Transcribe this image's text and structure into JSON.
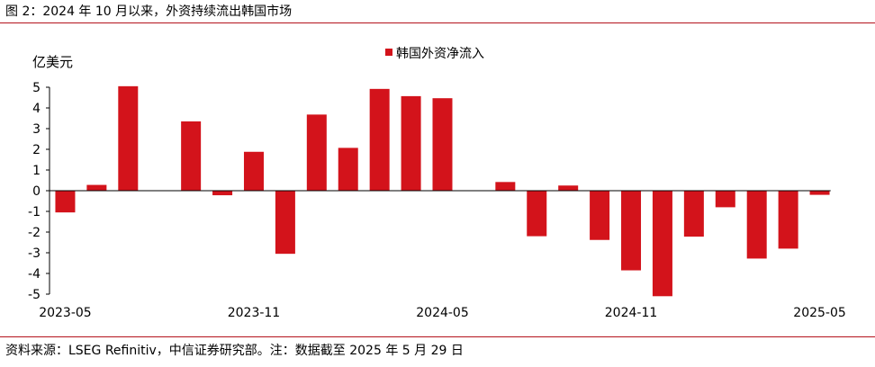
{
  "figure": {
    "title": "图 2：2024 年 10 月以来，外资持续流出韩国市场",
    "source": "资料来源：LSEG Refinitiv，中信证券研究部。注：数据截至 2025 年 5 月 29 日",
    "bar_color": "#d3131b",
    "rule_color": "#b4121b"
  },
  "chart_data": {
    "type": "bar",
    "title": "",
    "ylabel": "亿美元",
    "xlabel": "",
    "ylim": [
      -5,
      5
    ],
    "yticks": [
      5,
      4,
      3,
      2,
      1,
      0,
      -1,
      -2,
      -3,
      -4,
      -5
    ],
    "categories": [
      "2023-05",
      "2023-06",
      "2023-07",
      "2023-08",
      "2023-09",
      "2023-10",
      "2023-11",
      "2023-12",
      "2024-01",
      "2024-02",
      "2024-03",
      "2024-04",
      "2024-05",
      "2024-06",
      "2024-07",
      "2024-08",
      "2024-09",
      "2024-10",
      "2024-11",
      "2024-12",
      "2025-01",
      "2025-02",
      "2025-03",
      "2025-04",
      "2025-05"
    ],
    "xtick_labels": [
      "2023-05",
      "2023-11",
      "2024-05",
      "2024-11",
      "2025-05"
    ],
    "series": [
      {
        "name": "韩国外资净流入",
        "values": [
          -1.05,
          0.28,
          5.05,
          0.0,
          3.35,
          -0.22,
          1.88,
          -3.05,
          3.68,
          2.07,
          4.92,
          4.57,
          4.47,
          0.0,
          0.42,
          -2.2,
          0.25,
          -2.38,
          -3.85,
          -5.1,
          -2.22,
          -0.8,
          -3.28,
          -2.8,
          -0.2
        ]
      }
    ],
    "legend_position": "top-center",
    "grid": false
  }
}
